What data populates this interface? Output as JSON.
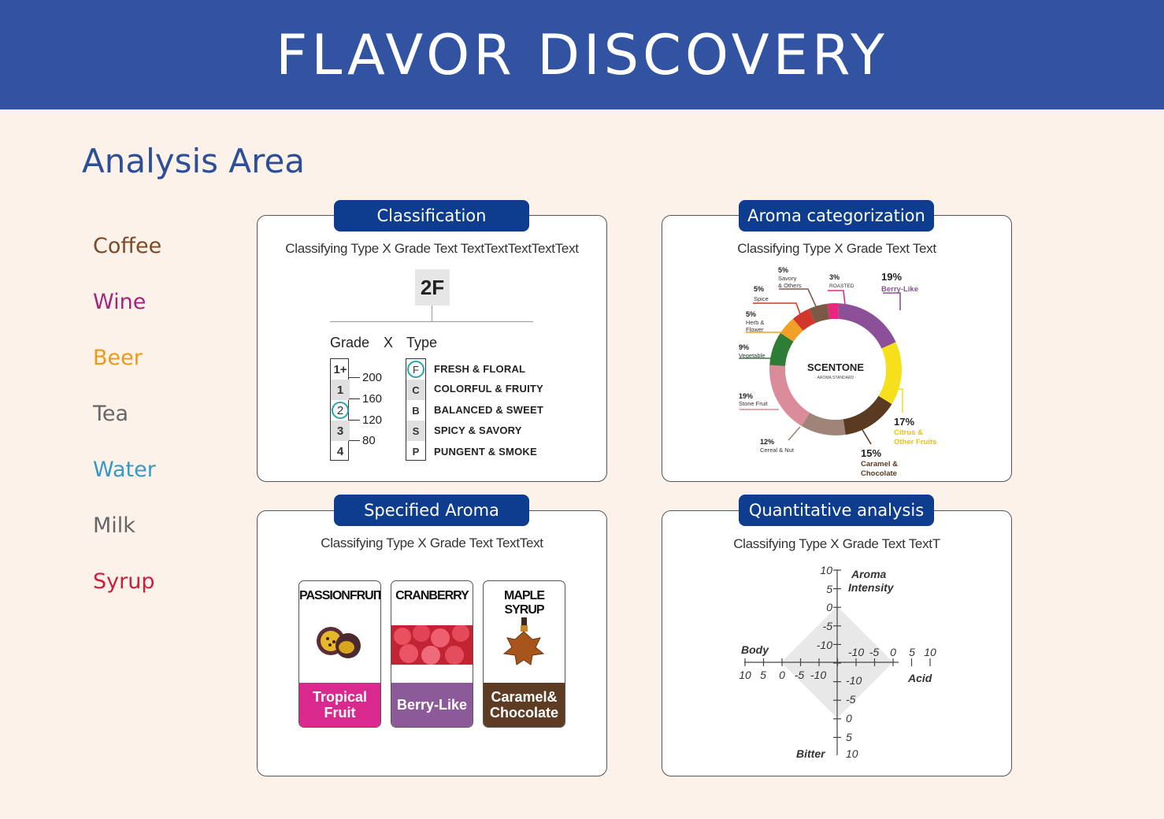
{
  "header": {
    "title": "FLAVOR DISCOVERY"
  },
  "analysis_title": "Analysis Area",
  "categories": [
    {
      "label": "Coffee",
      "color": "#7b4a25"
    },
    {
      "label": "Wine",
      "color": "#a3267e"
    },
    {
      "label": "Beer",
      "color": "#ea9a1a"
    },
    {
      "label": "Tea",
      "color": "#666666"
    },
    {
      "label": "Water",
      "color": "#3498c8"
    },
    {
      "label": "Milk",
      "color": "#666666"
    },
    {
      "label": "Syrup",
      "color": "#c8203f"
    }
  ],
  "classification": {
    "tab": "Classification",
    "subtitle": "Classifying Type X Grade Text TextTextTextTextText",
    "code": "2F",
    "grade_header": "Grade",
    "x_header": "X",
    "type_header": "Type",
    "grades": [
      "1+",
      "1",
      "2",
      "3",
      "4"
    ],
    "ticks": [
      "200",
      "160",
      "120",
      "80"
    ],
    "types": [
      {
        "code": "F",
        "label": "FRESH & FLORAL"
      },
      {
        "code": "C",
        "label": "COLORFUL & FRUITY"
      },
      {
        "code": "B",
        "label": "BALANCED & SWEET"
      },
      {
        "code": "S",
        "label": "SPICY & SAVORY"
      },
      {
        "code": "P",
        "label": "PUNGENT & SMOKE"
      }
    ]
  },
  "aroma": {
    "tab": "Aroma categorization",
    "subtitle": "Classifying Type X Grade Text Text",
    "brand": "SCENTONE",
    "brand_sub": "· AROMA STANDARD ·",
    "labels": {
      "berry": {
        "pct": "19%",
        "name": "Berry-Like"
      },
      "citrus": {
        "pct": "17%",
        "name1": "Citrus &",
        "name2": "Other Fruits"
      },
      "caramel": {
        "pct": "15%",
        "name1": "Caramel &",
        "name2": "Chocolate"
      },
      "cereal": {
        "pct": "12%",
        "name": "Cereal & Nut"
      },
      "stone": {
        "pct": "19%",
        "name": "Stone Fruit"
      },
      "vegetable": {
        "pct": "9%",
        "name": "Vegetable"
      },
      "herb": {
        "pct": "5%",
        "name1": "Herb &",
        "name2": "Flower"
      },
      "spice": {
        "pct": "5%",
        "name": "Spice"
      },
      "savory": {
        "pct": "5%",
        "name1": "Savory",
        "name2": "& Others"
      },
      "roasted": {
        "pct": "3%",
        "name": "ROASTED"
      }
    },
    "chart_data": {
      "type": "pie",
      "categories": [
        "Berry-Like",
        "Citrus & Other Fruits",
        "Caramel & Chocolate",
        "Cereal & Nut",
        "Stone Fruit",
        "Vegetable",
        "Herb & Flower",
        "Spice",
        "Savory & Others",
        "ROASTED"
      ],
      "values": [
        19,
        17,
        15,
        12,
        19,
        9,
        5,
        5,
        5,
        3
      ],
      "colors": [
        "#8c5099",
        "#f5e01b",
        "#5b3a22",
        "#a08478",
        "#db8c9a",
        "#2e7d36",
        "#f0a024",
        "#d2372c",
        "#7b5a45",
        "#e5287e"
      ]
    }
  },
  "specified": {
    "tab": "Specified Aroma",
    "subtitle": "Classifying Type X Grade Text TextText",
    "cards": [
      {
        "name": "PASSIONFRUIT",
        "category": "Tropical Fruit",
        "color": "#d9288e"
      },
      {
        "name": "CRANBERRY",
        "category": "Berry-Like",
        "color": "#8d5a99"
      },
      {
        "name": "MAPLE SYRUP",
        "category": "Caramel& Chocolate",
        "color": "#5e3b23"
      }
    ]
  },
  "quant": {
    "tab": "Quantitative analysis",
    "subtitle": "Classifying Type X Grade Text TextT",
    "axes": {
      "top": "Aroma Intensity",
      "right": "Acid",
      "left": "Body",
      "bottom": "Bitter"
    },
    "up_ticks": [
      "10",
      "5",
      "0",
      "-5",
      "-10"
    ],
    "down_ticks": [
      "-10",
      "-5",
      "0",
      "5",
      "10"
    ],
    "left_ticks": [
      "10",
      "5",
      "0",
      "-5",
      "-10"
    ],
    "right_ticks": [
      "-10",
      "-5",
      "0",
      "5",
      "10"
    ]
  }
}
